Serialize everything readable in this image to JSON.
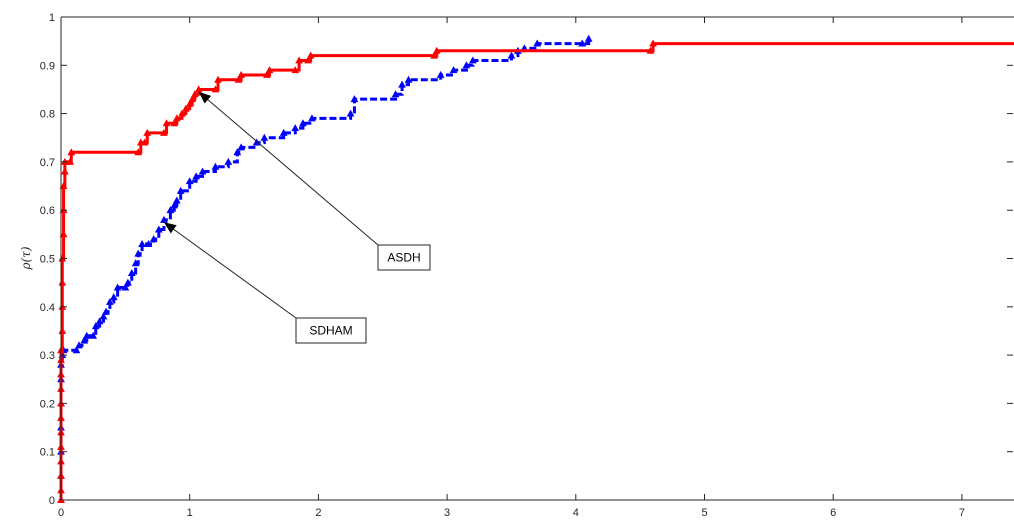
{
  "chart_data": {
    "type": "line",
    "title": "",
    "xlabel": "",
    "ylabel": "ρ(τ)",
    "xlim": [
      0,
      7.45
    ],
    "ylim": [
      0,
      1
    ],
    "x_ticks": [
      "0",
      "1",
      "2",
      "3",
      "4",
      "5",
      "6",
      "7"
    ],
    "y_ticks": [
      "0",
      "0.1",
      "0.2",
      "0.3",
      "0.4",
      "0.5",
      "0.6",
      "0.7",
      "0.8",
      "0.9",
      "1"
    ],
    "grid": false,
    "series": [
      {
        "color": "#ff0000",
        "line_style": "solid",
        "marker": "triangle",
        "points": [
          [
            0,
            0
          ],
          [
            0,
            0.02
          ],
          [
            0,
            0.05
          ],
          [
            0,
            0.08
          ],
          [
            0,
            0.11
          ],
          [
            0,
            0.14
          ],
          [
            0,
            0.17
          ],
          [
            0,
            0.2
          ],
          [
            0,
            0.23
          ],
          [
            0,
            0.26
          ],
          [
            0,
            0.29
          ],
          [
            0,
            0.31
          ],
          [
            0.01,
            0.35
          ],
          [
            0.01,
            0.4
          ],
          [
            0.01,
            0.45
          ],
          [
            0.01,
            0.5
          ],
          [
            0.02,
            0.55
          ],
          [
            0.02,
            0.6
          ],
          [
            0.02,
            0.65
          ],
          [
            0.03,
            0.68
          ],
          [
            0.03,
            0.7
          ],
          [
            0.07,
            0.7
          ],
          [
            0.08,
            0.72
          ],
          [
            0.6,
            0.72
          ],
          [
            0.62,
            0.74
          ],
          [
            0.65,
            0.74
          ],
          [
            0.67,
            0.76
          ],
          [
            0.8,
            0.76
          ],
          [
            0.82,
            0.78
          ],
          [
            0.88,
            0.78
          ],
          [
            0.9,
            0.79
          ],
          [
            0.94,
            0.8
          ],
          [
            0.97,
            0.81
          ],
          [
            1.0,
            0.82
          ],
          [
            1.02,
            0.83
          ],
          [
            1.04,
            0.84
          ],
          [
            1.07,
            0.85
          ],
          [
            1.2,
            0.85
          ],
          [
            1.22,
            0.87
          ],
          [
            1.38,
            0.87
          ],
          [
            1.4,
            0.88
          ],
          [
            1.6,
            0.88
          ],
          [
            1.62,
            0.89
          ],
          [
            1.82,
            0.89
          ],
          [
            1.85,
            0.91
          ],
          [
            1.92,
            0.91
          ],
          [
            1.94,
            0.92
          ],
          [
            2.9,
            0.92
          ],
          [
            2.92,
            0.93
          ],
          [
            4.58,
            0.93
          ],
          [
            4.6,
            0.945
          ],
          [
            7.45,
            0.945
          ]
        ]
      },
      {
        "color": "#0000ff",
        "line_style": "dashed",
        "marker": "triangle",
        "points": [
          [
            0,
            0
          ],
          [
            0,
            0.05
          ],
          [
            0,
            0.1
          ],
          [
            0,
            0.15
          ],
          [
            0,
            0.2
          ],
          [
            0,
            0.25
          ],
          [
            0,
            0.28
          ],
          [
            0.01,
            0.3
          ],
          [
            0.02,
            0.31
          ],
          [
            0.12,
            0.31
          ],
          [
            0.14,
            0.32
          ],
          [
            0.18,
            0.33
          ],
          [
            0.2,
            0.34
          ],
          [
            0.25,
            0.34
          ],
          [
            0.27,
            0.36
          ],
          [
            0.3,
            0.37
          ],
          [
            0.33,
            0.38
          ],
          [
            0.35,
            0.39
          ],
          [
            0.38,
            0.41
          ],
          [
            0.41,
            0.42
          ],
          [
            0.44,
            0.44
          ],
          [
            0.5,
            0.44
          ],
          [
            0.52,
            0.45
          ],
          [
            0.55,
            0.47
          ],
          [
            0.58,
            0.49
          ],
          [
            0.6,
            0.51
          ],
          [
            0.63,
            0.53
          ],
          [
            0.68,
            0.53
          ],
          [
            0.72,
            0.54
          ],
          [
            0.76,
            0.56
          ],
          [
            0.8,
            0.58
          ],
          [
            0.85,
            0.6
          ],
          [
            0.88,
            0.61
          ],
          [
            0.9,
            0.62
          ],
          [
            0.93,
            0.64
          ],
          [
            1.0,
            0.66
          ],
          [
            1.05,
            0.67
          ],
          [
            1.1,
            0.68
          ],
          [
            1.2,
            0.69
          ],
          [
            1.3,
            0.7
          ],
          [
            1.37,
            0.72
          ],
          [
            1.4,
            0.73
          ],
          [
            1.52,
            0.74
          ],
          [
            1.58,
            0.75
          ],
          [
            1.73,
            0.76
          ],
          [
            1.82,
            0.77
          ],
          [
            1.88,
            0.78
          ],
          [
            1.95,
            0.79
          ],
          [
            2.25,
            0.8
          ],
          [
            2.28,
            0.83
          ],
          [
            2.6,
            0.84
          ],
          [
            2.65,
            0.86
          ],
          [
            2.7,
            0.87
          ],
          [
            2.95,
            0.88
          ],
          [
            3.05,
            0.89
          ],
          [
            3.15,
            0.9
          ],
          [
            3.2,
            0.91
          ],
          [
            3.5,
            0.92
          ],
          [
            3.55,
            0.93
          ],
          [
            3.6,
            0.935
          ],
          [
            3.7,
            0.945
          ],
          [
            4.05,
            0.945
          ],
          [
            4.1,
            0.955
          ]
        ]
      }
    ],
    "annotations": [
      {
        "text": "ASDH",
        "target": [
          1.07,
          0.845
        ]
      },
      {
        "text": "SDHAM",
        "target": [
          0.8,
          0.575
        ]
      }
    ]
  }
}
